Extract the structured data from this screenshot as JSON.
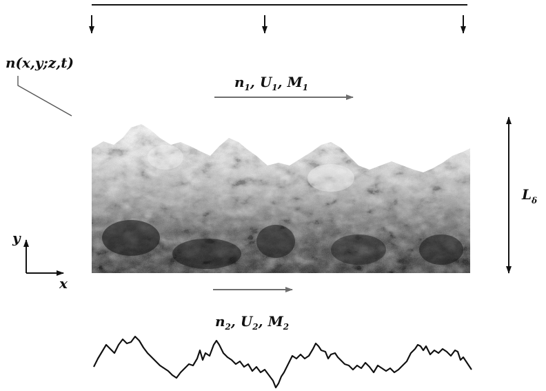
{
  "labels": {
    "field": "n(x,y;z,t)",
    "upper_stream": {
      "n": "n",
      "n_sub": "1",
      "U": "U",
      "U_sub": "1",
      "M": "M",
      "M_sub": "1",
      "sep": ", "
    },
    "lower_stream": {
      "n": "n",
      "n_sub": "2",
      "U": "U",
      "U_sub": "2",
      "M": "M",
      "M_sub": "2",
      "sep": ", "
    },
    "thickness": "L",
    "thickness_sub": "δ",
    "axis_x": "x",
    "axis_y": "y"
  },
  "colors": {
    "ink": "#111111",
    "arrow_gray": "#6e6e6e",
    "flow_dark": "#1a1a1a",
    "flow_mid": "#7a7a7a",
    "flow_light": "#d4d4d4"
  }
}
